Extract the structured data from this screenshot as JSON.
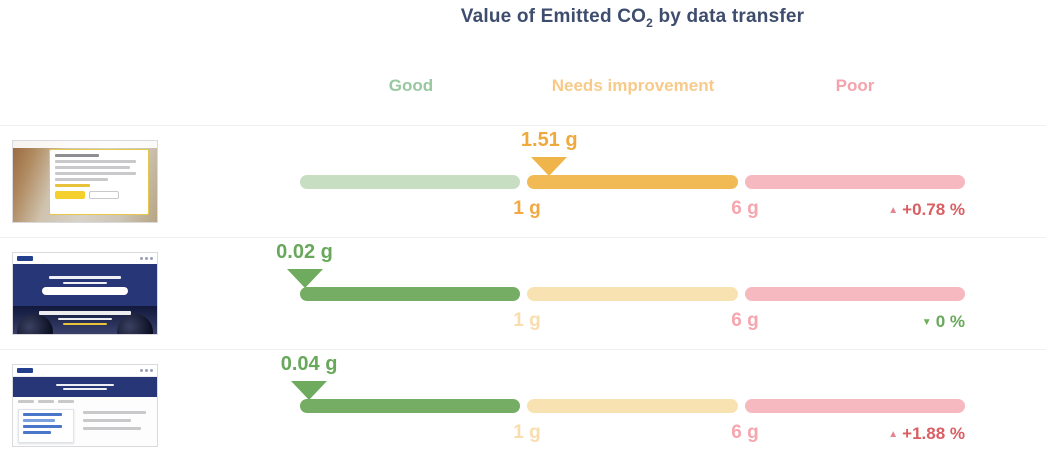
{
  "title": {
    "prefix": "Value of Emitted CO",
    "subscript": "2",
    "suffix": " by data transfer"
  },
  "zone_headers": {
    "good": "Good",
    "needs_improvement": "Needs improvement",
    "poor": "Poor"
  },
  "icons": {
    "value_marker": "triangle-down",
    "trend_up": "▲",
    "trend_down": "▼"
  },
  "colors": {
    "title": "#3e4d6e",
    "good_header": "#98c8a0",
    "needs_improvement_header": "#f7ca8a",
    "poor_header": "#f4a2ac",
    "good_strong": "#74ad63",
    "good_pale": "#c8dec3",
    "needs_improvement_strong": "#f2ba55",
    "needs_improvement_pale": "#f9e2b2",
    "poor_pale": "#f6b9bf",
    "trend_negative": "#d85f63",
    "trend_positive": "#68a85b"
  },
  "rows": [
    {
      "thumbnail_desc": "webpage screenshot with cookie consent dialog",
      "value_label": "1.51 g",
      "value_g": 1.51,
      "zone": "needs-improvement",
      "tick_low": "1 g",
      "tick_high": "6 g",
      "change_label": "+0.78 %",
      "change_direction": "up",
      "change_sentiment": "negative"
    },
    {
      "thumbnail_desc": "webpage screenshot with dark hero and tires",
      "value_label": "0.02 g",
      "value_g": 0.02,
      "zone": "good",
      "tick_low": "1 g",
      "tick_high": "6 g",
      "change_label": "0 %",
      "change_direction": "down",
      "change_sentiment": "positive"
    },
    {
      "thumbnail_desc": "webpage screenshot with search results and open menu",
      "value_label": "0.04 g",
      "value_g": 0.04,
      "zone": "good",
      "tick_low": "1 g",
      "tick_high": "6 g",
      "change_label": "+1.88 %",
      "change_direction": "up",
      "change_sentiment": "negative"
    }
  ],
  "chart_data": {
    "type": "bullet",
    "title": "Value of Emitted CO2 by data transfer",
    "unit": "g",
    "zones": [
      {
        "label": "Good",
        "from": 0,
        "to": 1,
        "color": "#74ad63"
      },
      {
        "label": "Needs improvement",
        "from": 1,
        "to": 6,
        "color": "#f2ba55"
      },
      {
        "label": "Poor",
        "from": 6,
        "to": null,
        "color": "#f6b9bf"
      }
    ],
    "thresholds": [
      {
        "value": 1,
        "label": "1 g"
      },
      {
        "value": 6,
        "label": "6 g"
      }
    ],
    "series": [
      {
        "row": 1,
        "value_g": 1.51,
        "zone": "Needs improvement",
        "change_pct": 0.78,
        "change_label": "+0.78 %",
        "trend": "up"
      },
      {
        "row": 2,
        "value_g": 0.02,
        "zone": "Good",
        "change_pct": 0,
        "change_label": "0 %",
        "trend": "down"
      },
      {
        "row": 3,
        "value_g": 0.04,
        "zone": "Good",
        "change_pct": 1.88,
        "change_label": "+1.88 %",
        "trend": "up"
      }
    ],
    "legend_position": "top",
    "grid": false
  }
}
